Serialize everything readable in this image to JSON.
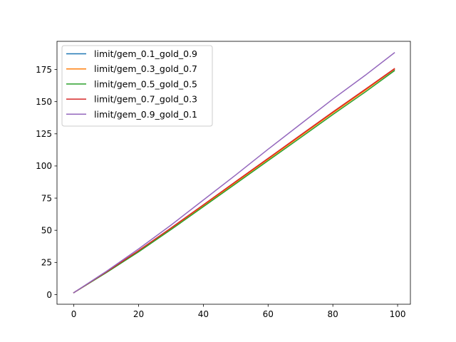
{
  "chart_data": {
    "type": "line",
    "title": "",
    "xlabel": "",
    "ylabel": "",
    "xlim": [
      -5.2,
      103.95
    ],
    "ylim": [
      -7.5,
      196.9
    ],
    "xticks": [
      0,
      20,
      40,
      60,
      80,
      100
    ],
    "yticks": [
      0,
      25,
      50,
      75,
      100,
      125,
      150,
      175
    ],
    "grid": false,
    "legend_position": "upper-left",
    "x": [
      0,
      10,
      20,
      30,
      40,
      50,
      60,
      70,
      80,
      90,
      99
    ],
    "series": [
      {
        "name": "limit/gem_0.1_gold_0.9",
        "color": "#1f77b4",
        "values": [
          1.5,
          17.5,
          34.0,
          51.5,
          69.5,
          87.5,
          105.5,
          123.5,
          141.5,
          159.0,
          175.0
        ]
      },
      {
        "name": "limit/gem_0.3_gold_0.7",
        "color": "#ff7f0e",
        "values": [
          1.5,
          17.4,
          33.8,
          51.2,
          69.2,
          87.2,
          105.2,
          123.2,
          141.2,
          158.8,
          175.2
        ]
      },
      {
        "name": "limit/gem_0.5_gold_0.5",
        "color": "#2ca02c",
        "values": [
          1.5,
          17.0,
          33.2,
          50.5,
          68.3,
          86.2,
          104.1,
          122.0,
          140.0,
          157.5,
          174.0
        ]
      },
      {
        "name": "limit/gem_0.7_gold_0.3",
        "color": "#d62728",
        "values": [
          1.5,
          17.5,
          34.2,
          51.8,
          69.8,
          87.9,
          105.9,
          124.0,
          142.0,
          159.6,
          175.6
        ]
      },
      {
        "name": "limit/gem_0.9_gold_0.1",
        "color": "#9467bd",
        "values": [
          1.5,
          18.0,
          35.5,
          54.0,
          73.5,
          93.0,
          113.0,
          132.5,
          152.0,
          170.5,
          188.0
        ]
      }
    ]
  }
}
